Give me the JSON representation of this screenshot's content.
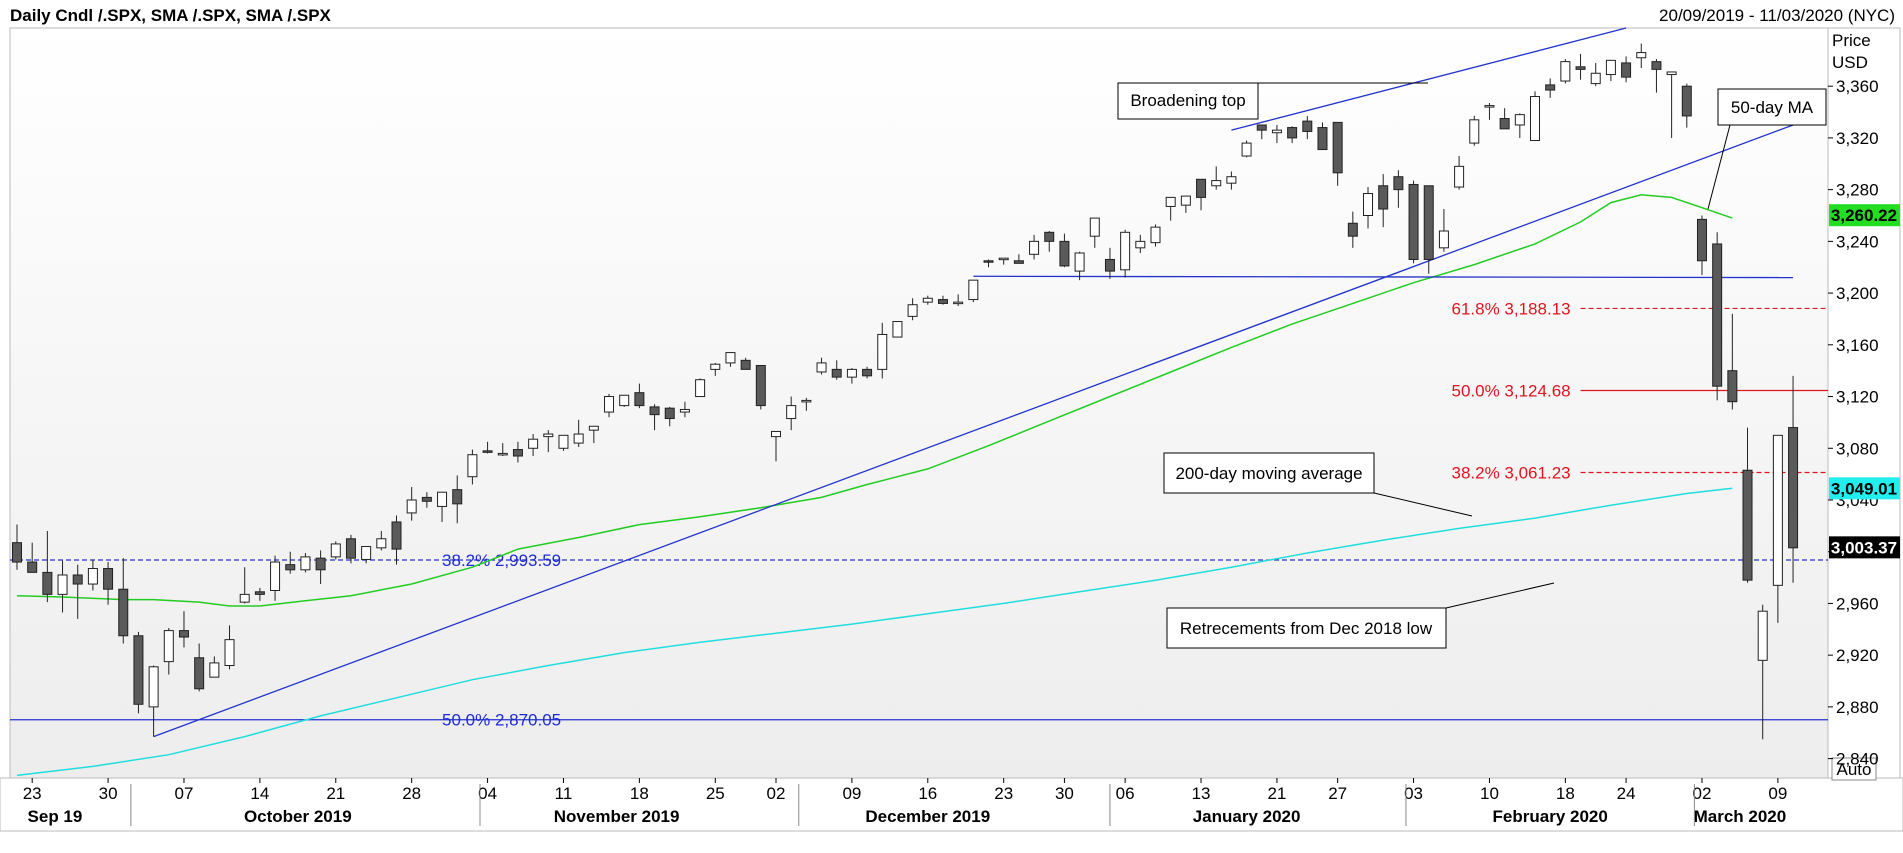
{
  "header": {
    "title": "Daily Cndl /.SPX, SMA /.SPX, SMA /.SPX",
    "date_range": "20/09/2019 - 11/03/2020 (NYC)"
  },
  "axis": {
    "price_label": "Price",
    "currency_label": "USD",
    "auto_label": "Auto"
  },
  "colors": {
    "up_candle": "#ffffff",
    "down_candle": "#5a5a5a",
    "sma50": "#22cc22",
    "sma200": "#22dddd",
    "trendline": "#2233cc",
    "fib_red": "#e0141e",
    "fib_blue": "#2233cc"
  },
  "chart_data": {
    "type": "candlestick",
    "title": "Daily Cndl /.SPX, SMA /.SPX, SMA /.SPX",
    "ylim": [
      2825,
      3405
    ],
    "y_ticks": [
      2840,
      2880,
      2920,
      2960,
      3000,
      3040,
      3080,
      3120,
      3160,
      3200,
      3240,
      3280,
      3320,
      3360
    ],
    "y_tick_labels": [
      "2,840",
      "2,880",
      "2,920",
      "2,960",
      "",
      "3,040",
      "3,080",
      "3,120",
      "3,160",
      "3,200",
      "3,240",
      "3,280",
      "3,320",
      "3,360"
    ],
    "x_day_labels": [
      {
        "i": 1,
        "label": "23"
      },
      {
        "i": 6,
        "label": "30"
      },
      {
        "i": 11,
        "label": "07"
      },
      {
        "i": 16,
        "label": "14"
      },
      {
        "i": 21,
        "label": "21"
      },
      {
        "i": 26,
        "label": "28"
      },
      {
        "i": 31,
        "label": "04"
      },
      {
        "i": 36,
        "label": "11"
      },
      {
        "i": 41,
        "label": "18"
      },
      {
        "i": 46,
        "label": "25"
      },
      {
        "i": 50,
        "label": "02"
      },
      {
        "i": 55,
        "label": "09"
      },
      {
        "i": 60,
        "label": "16"
      },
      {
        "i": 65,
        "label": "23"
      },
      {
        "i": 69,
        "label": "30"
      },
      {
        "i": 73,
        "label": "06"
      },
      {
        "i": 78,
        "label": "13"
      },
      {
        "i": 83,
        "label": "21"
      },
      {
        "i": 87,
        "label": "27"
      },
      {
        "i": 92,
        "label": "03"
      },
      {
        "i": 97,
        "label": "10"
      },
      {
        "i": 102,
        "label": "18"
      },
      {
        "i": 106,
        "label": "24"
      },
      {
        "i": 111,
        "label": "02"
      },
      {
        "i": 116,
        "label": "09"
      }
    ],
    "x_month_labels": [
      {
        "i": 2.5,
        "label": "Sep 19"
      },
      {
        "i": 18.5,
        "label": "October 2019"
      },
      {
        "i": 39.5,
        "label": "November 2019"
      },
      {
        "i": 60,
        "label": "December 2019"
      },
      {
        "i": 81,
        "label": "January 2020"
      },
      {
        "i": 101,
        "label": "February 2020"
      },
      {
        "i": 113.5,
        "label": "March 2020"
      }
    ],
    "month_separators": [
      7.5,
      30.5,
      51.5,
      72,
      91.5,
      110.5
    ],
    "candles": [
      {
        "o": 3007,
        "h": 3021,
        "l": 2986,
        "c": 2992
      },
      {
        "o": 2992,
        "h": 3007,
        "l": 2984,
        "c": 2984
      },
      {
        "o": 2984,
        "h": 3016,
        "l": 2961,
        "c": 2967
      },
      {
        "o": 2967,
        "h": 2993,
        "l": 2953,
        "c": 2982
      },
      {
        "o": 2982,
        "h": 2990,
        "l": 2948,
        "c": 2975
      },
      {
        "o": 2975,
        "h": 2994,
        "l": 2970,
        "c": 2987
      },
      {
        "o": 2987,
        "h": 2992,
        "l": 2959,
        "c": 2971
      },
      {
        "o": 2971,
        "h": 2995,
        "l": 2929,
        "c": 2935
      },
      {
        "o": 2935,
        "h": 2938,
        "l": 2875,
        "c": 2882
      },
      {
        "o": 2880,
        "h": 2912,
        "l": 2857,
        "c": 2911
      },
      {
        "o": 2915,
        "h": 2941,
        "l": 2905,
        "c": 2939
      },
      {
        "o": 2939,
        "h": 2954,
        "l": 2926,
        "c": 2934
      },
      {
        "o": 2918,
        "h": 2929,
        "l": 2892,
        "c": 2894
      },
      {
        "o": 2903,
        "h": 2919,
        "l": 2903,
        "c": 2914
      },
      {
        "o": 2912,
        "h": 2943,
        "l": 2909,
        "c": 2932
      },
      {
        "o": 2961,
        "h": 2988,
        "l": 2960,
        "c": 2967
      },
      {
        "o": 2969,
        "h": 2972,
        "l": 2962,
        "c": 2967
      },
      {
        "o": 2970,
        "h": 2997,
        "l": 2962,
        "c": 2992
      },
      {
        "o": 2990,
        "h": 3000,
        "l": 2983,
        "c": 2986
      },
      {
        "o": 2986,
        "h": 2999,
        "l": 2984,
        "c": 2996
      },
      {
        "o": 2995,
        "h": 3001,
        "l": 2975,
        "c": 2986
      },
      {
        "o": 2996,
        "h": 3008,
        "l": 2994,
        "c": 3006
      },
      {
        "o": 3010,
        "h": 3013,
        "l": 2991,
        "c": 2995
      },
      {
        "o": 2994,
        "h": 3004,
        "l": 2991,
        "c": 3004
      },
      {
        "o": 3003,
        "h": 3016,
        "l": 3001,
        "c": 3010
      },
      {
        "o": 3023,
        "h": 3028,
        "l": 2990,
        "c": 3002
      },
      {
        "o": 3030,
        "h": 3050,
        "l": 3024,
        "c": 3040
      },
      {
        "o": 3042,
        "h": 3046,
        "l": 3034,
        "c": 3039
      },
      {
        "o": 3035,
        "h": 3046,
        "l": 3023,
        "c": 3046
      },
      {
        "o": 3048,
        "h": 3059,
        "l": 3022,
        "c": 3037
      },
      {
        "o": 3058,
        "h": 3079,
        "l": 3052,
        "c": 3075
      },
      {
        "o": 3078,
        "h": 3085,
        "l": 3076,
        "c": 3077
      },
      {
        "o": 3076,
        "h": 3084,
        "l": 3074,
        "c": 3076
      },
      {
        "o": 3079,
        "h": 3085,
        "l": 3069,
        "c": 3074
      },
      {
        "o": 3080,
        "h": 3091,
        "l": 3074,
        "c": 3087
      },
      {
        "o": 3089,
        "h": 3094,
        "l": 3077,
        "c": 3091
      },
      {
        "o": 3080,
        "h": 3090,
        "l": 3078,
        "c": 3090
      },
      {
        "o": 3084,
        "h": 3102,
        "l": 3081,
        "c": 3091
      },
      {
        "o": 3094,
        "h": 3097,
        "l": 3084,
        "c": 3097
      },
      {
        "o": 3108,
        "h": 3122,
        "l": 3104,
        "c": 3120
      },
      {
        "o": 3113,
        "h": 3121,
        "l": 3112,
        "c": 3121
      },
      {
        "o": 3123,
        "h": 3130,
        "l": 3111,
        "c": 3113
      },
      {
        "o": 3112,
        "h": 3114,
        "l": 3094,
        "c": 3106
      },
      {
        "o": 3111,
        "h": 3112,
        "l": 3097,
        "c": 3103
      },
      {
        "o": 3108,
        "h": 3116,
        "l": 3104,
        "c": 3110
      },
      {
        "o": 3120,
        "h": 3134,
        "l": 3120,
        "c": 3133
      },
      {
        "o": 3141,
        "h": 3146,
        "l": 3136,
        "c": 3145
      },
      {
        "o": 3146,
        "h": 3154,
        "l": 3143,
        "c": 3154
      },
      {
        "o": 3148,
        "h": 3150,
        "l": 3142,
        "c": 3141
      },
      {
        "o": 3144,
        "h": 3144,
        "l": 3110,
        "c": 3113
      },
      {
        "o": 3089,
        "h": 3093,
        "l": 3070,
        "c": 3093
      },
      {
        "o": 3103,
        "h": 3120,
        "l": 3094,
        "c": 3113
      },
      {
        "o": 3117,
        "h": 3119,
        "l": 3109,
        "c": 3117
      },
      {
        "o": 3139,
        "h": 3150,
        "l": 3137,
        "c": 3146
      },
      {
        "o": 3141,
        "h": 3148,
        "l": 3133,
        "c": 3135
      },
      {
        "o": 3135,
        "h": 3142,
        "l": 3130,
        "c": 3141
      },
      {
        "o": 3141,
        "h": 3143,
        "l": 3134,
        "c": 3136
      },
      {
        "o": 3141,
        "h": 3177,
        "l": 3134,
        "c": 3168
      },
      {
        "o": 3166,
        "h": 3178,
        "l": 3166,
        "c": 3178
      },
      {
        "o": 3182,
        "h": 3196,
        "l": 3179,
        "c": 3191
      },
      {
        "o": 3193,
        "h": 3198,
        "l": 3191,
        "c": 3196
      },
      {
        "o": 3195,
        "h": 3198,
        "l": 3191,
        "c": 3192
      },
      {
        "o": 3192,
        "h": 3199,
        "l": 3190,
        "c": 3193
      },
      {
        "o": 3195,
        "h": 3210,
        "l": 3193,
        "c": 3210
      },
      {
        "o": 3225,
        "h": 3226,
        "l": 3220,
        "c": 3224
      },
      {
        "o": 3226,
        "h": 3227,
        "l": 3222,
        "c": 3227
      },
      {
        "o": 3225,
        "h": 3230,
        "l": 3223,
        "c": 3223
      },
      {
        "o": 3230,
        "h": 3245,
        "l": 3226,
        "c": 3240
      },
      {
        "o": 3247,
        "h": 3248,
        "l": 3232,
        "c": 3240
      },
      {
        "o": 3240,
        "h": 3246,
        "l": 3220,
        "c": 3221
      },
      {
        "o": 3217,
        "h": 3232,
        "l": 3210,
        "c": 3231
      },
      {
        "o": 3244,
        "h": 3258,
        "l": 3235,
        "c": 3258
      },
      {
        "o": 3226,
        "h": 3235,
        "l": 3211,
        "c": 3217
      },
      {
        "o": 3218,
        "h": 3249,
        "l": 3212,
        "c": 3247
      },
      {
        "o": 3235,
        "h": 3245,
        "l": 3231,
        "c": 3240
      },
      {
        "o": 3239,
        "h": 3253,
        "l": 3236,
        "c": 3251
      },
      {
        "o": 3267,
        "h": 3270,
        "l": 3256,
        "c": 3274
      },
      {
        "o": 3268,
        "h": 3275,
        "l": 3262,
        "c": 3275
      },
      {
        "o": 3288,
        "h": 3288,
        "l": 3264,
        "c": 3274
      },
      {
        "o": 3283,
        "h": 3298,
        "l": 3280,
        "c": 3287
      },
      {
        "o": 3285,
        "h": 3294,
        "l": 3280,
        "c": 3290
      },
      {
        "o": 3306,
        "h": 3318,
        "l": 3305,
        "c": 3316
      },
      {
        "o": 3330,
        "h": 3330,
        "l": 3319,
        "c": 3326
      },
      {
        "o": 3324,
        "h": 3330,
        "l": 3316,
        "c": 3326
      },
      {
        "o": 3328,
        "h": 3329,
        "l": 3316,
        "c": 3320
      },
      {
        "o": 3333,
        "h": 3337,
        "l": 3319,
        "c": 3325
      },
      {
        "o": 3328,
        "h": 3332,
        "l": 3311,
        "c": 3311
      },
      {
        "o": 3332,
        "h": 3332,
        "l": 3283,
        "c": 3293
      },
      {
        "o": 3254,
        "h": 3263,
        "l": 3235,
        "c": 3244
      },
      {
        "o": 3260,
        "h": 3282,
        "l": 3250,
        "c": 3277
      },
      {
        "o": 3283,
        "h": 3292,
        "l": 3251,
        "c": 3265
      },
      {
        "o": 3290,
        "h": 3295,
        "l": 3266,
        "c": 3280
      },
      {
        "o": 3284,
        "h": 3287,
        "l": 3223,
        "c": 3226
      },
      {
        "o": 3283,
        "h": 3283,
        "l": 3215,
        "c": 3226
      },
      {
        "o": 3235,
        "h": 3265,
        "l": 3232,
        "c": 3248
      },
      {
        "o": 3282,
        "h": 3306,
        "l": 3280,
        "c": 3298
      },
      {
        "o": 3316,
        "h": 3337,
        "l": 3314,
        "c": 3334
      },
      {
        "o": 3344,
        "h": 3347,
        "l": 3334,
        "c": 3345
      },
      {
        "o": 3335,
        "h": 3343,
        "l": 3330,
        "c": 3327
      },
      {
        "o": 3330,
        "h": 3339,
        "l": 3320,
        "c": 3338
      },
      {
        "o": 3318,
        "h": 3356,
        "l": 3318,
        "c": 3352
      },
      {
        "o": 3361,
        "h": 3366,
        "l": 3351,
        "c": 3357
      },
      {
        "o": 3364,
        "h": 3381,
        "l": 3362,
        "c": 3379
      },
      {
        "o": 3375,
        "h": 3385,
        "l": 3365,
        "c": 3373
      },
      {
        "o": 3362,
        "h": 3378,
        "l": 3360,
        "c": 3370
      },
      {
        "o": 3369,
        "h": 3380,
        "l": 3364,
        "c": 3380
      },
      {
        "o": 3378,
        "h": 3383,
        "l": 3363,
        "c": 3367
      },
      {
        "o": 3382,
        "h": 3393,
        "l": 3374,
        "c": 3386
      },
      {
        "o": 3379,
        "h": 3381,
        "l": 3355,
        "c": 3373
      },
      {
        "o": 3369,
        "h": 3369,
        "l": 3320,
        "c": 3371
      },
      {
        "o": 3360,
        "h": 3362,
        "l": 3328,
        "c": 3337
      },
      {
        "o": 3257,
        "h": 3260,
        "l": 3214,
        "c": 3225
      },
      {
        "o": 3238,
        "h": 3247,
        "l": 3117,
        "c": 3128
      },
      {
        "o": 3140,
        "h": 3184,
        "l": 3110,
        "c": 3116
      },
      {
        "o": 3063,
        "h": 3096,
        "l": 2976,
        "c": 2978
      },
      {
        "o": 2916,
        "h": 2959,
        "l": 2855,
        "c": 2954
      },
      {
        "o": 2974,
        "h": 3090,
        "l": 2945,
        "c": 3090
      },
      {
        "o": 3096,
        "h": 3136,
        "l": 2976,
        "c": 3003
      }
    ],
    "sma50": [
      [
        0,
        2966
      ],
      [
        3,
        2965
      ],
      [
        7,
        2963
      ],
      [
        9,
        2963
      ],
      [
        12,
        2961
      ],
      [
        14,
        2958
      ],
      [
        16,
        2958
      ],
      [
        19,
        2962
      ],
      [
        22,
        2966
      ],
      [
        26,
        2975
      ],
      [
        30,
        2988
      ],
      [
        33,
        3002
      ],
      [
        37,
        3011
      ],
      [
        41,
        3021
      ],
      [
        45,
        3027
      ],
      [
        49,
        3034
      ],
      [
        53,
        3042
      ],
      [
        56,
        3052
      ],
      [
        60,
        3064
      ],
      [
        64,
        3082
      ],
      [
        68,
        3101
      ],
      [
        72,
        3120
      ],
      [
        76,
        3139
      ],
      [
        80,
        3158
      ],
      [
        84,
        3176
      ],
      [
        88,
        3192
      ],
      [
        92,
        3208
      ],
      [
        96,
        3222
      ],
      [
        100,
        3238
      ],
      [
        103,
        3255
      ],
      [
        105,
        3270
      ],
      [
        107,
        3276
      ],
      [
        109,
        3274
      ],
      [
        111,
        3266
      ],
      [
        113,
        3258
      ]
    ],
    "sma200": [
      [
        0,
        2827
      ],
      [
        5,
        2834
      ],
      [
        10,
        2843
      ],
      [
        15,
        2857
      ],
      [
        20,
        2873
      ],
      [
        25,
        2887
      ],
      [
        30,
        2901
      ],
      [
        35,
        2912
      ],
      [
        40,
        2922
      ],
      [
        45,
        2930
      ],
      [
        50,
        2937
      ],
      [
        55,
        2944
      ],
      [
        60,
        2952
      ],
      [
        65,
        2960
      ],
      [
        70,
        2969
      ],
      [
        75,
        2978
      ],
      [
        80,
        2988
      ],
      [
        85,
        2999
      ],
      [
        90,
        3009
      ],
      [
        95,
        3018
      ],
      [
        100,
        3026
      ],
      [
        105,
        3036
      ],
      [
        110,
        3045
      ],
      [
        113,
        3049
      ]
    ],
    "trendlines": [
      {
        "from": [
          9,
          2857
        ],
        "to": [
          117,
          3330
        ]
      },
      {
        "from": [
          80,
          3326
        ],
        "to": [
          106,
          3406
        ]
      },
      {
        "from": [
          63,
          3213
        ],
        "to": [
          117,
          3212
        ]
      }
    ],
    "levels": [
      {
        "price": 2993.59,
        "label": "38.2% 2,993.59",
        "style": "blue-dashed",
        "label_i": 28
      },
      {
        "price": 2870.05,
        "label": "50.0% 2,870.05",
        "style": "blue-solid",
        "label_i": 28
      },
      {
        "price": 3188.13,
        "label": "61.8% 3,188.13",
        "style": "red-dashed",
        "label_i": 94.5,
        "from_i": 103
      },
      {
        "price": 3124.68,
        "label": "50.0% 3,124.68",
        "style": "red-solid",
        "label_i": 94.5,
        "from_i": 103
      },
      {
        "price": 3061.23,
        "label": "38.2% 3,061.23",
        "style": "red-dashed",
        "label_i": 94.5,
        "from_i": 103
      }
    ],
    "annotations": [
      {
        "text": "Broadening top"
      },
      {
        "text": "50-day MA"
      },
      {
        "text": "200-day moving average"
      },
      {
        "text": "Retrecements from Dec 2018 low"
      }
    ],
    "badges": [
      {
        "price": 3260.22,
        "text": "3,260.22",
        "color": "#22dd22",
        "text_color": "#000"
      },
      {
        "price": 3049.01,
        "text": "3,049.01",
        "color": "#22eeee",
        "text_color": "#000"
      },
      {
        "price": 3003.37,
        "text": "3,003.37",
        "color": "#000000",
        "text_color": "#fff"
      }
    ]
  }
}
